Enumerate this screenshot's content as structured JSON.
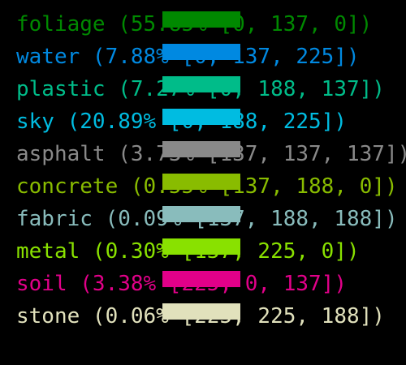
{
  "legend": {
    "items": [
      {
        "label": "foliage (55.85% [0, 137, 0])",
        "color": "#008900"
      },
      {
        "label": "water (7.88% [0, 137, 225])",
        "color": "#0089e1"
      },
      {
        "label": "plastic (7.27% [0, 188, 137])",
        "color": "#00bc89"
      },
      {
        "label": "sky (20.89% [0, 188, 225])",
        "color": "#00bce1"
      },
      {
        "label": "asphalt (3.73% [137, 137, 137])",
        "color": "#898989"
      },
      {
        "label": "concrete (0.55% [137, 188, 0])",
        "color": "#89bc00"
      },
      {
        "label": "fabric (0.09% [137, 188, 188])",
        "color": "#89bcbc"
      },
      {
        "label": "metal (0.30% [137, 225, 0])",
        "color": "#89e100"
      },
      {
        "label": "soil (3.38% [225, 0, 137])",
        "color": "#e10089"
      },
      {
        "label": "stone (0.06% [225, 225, 188])",
        "color": "#e1e1bc"
      }
    ]
  }
}
